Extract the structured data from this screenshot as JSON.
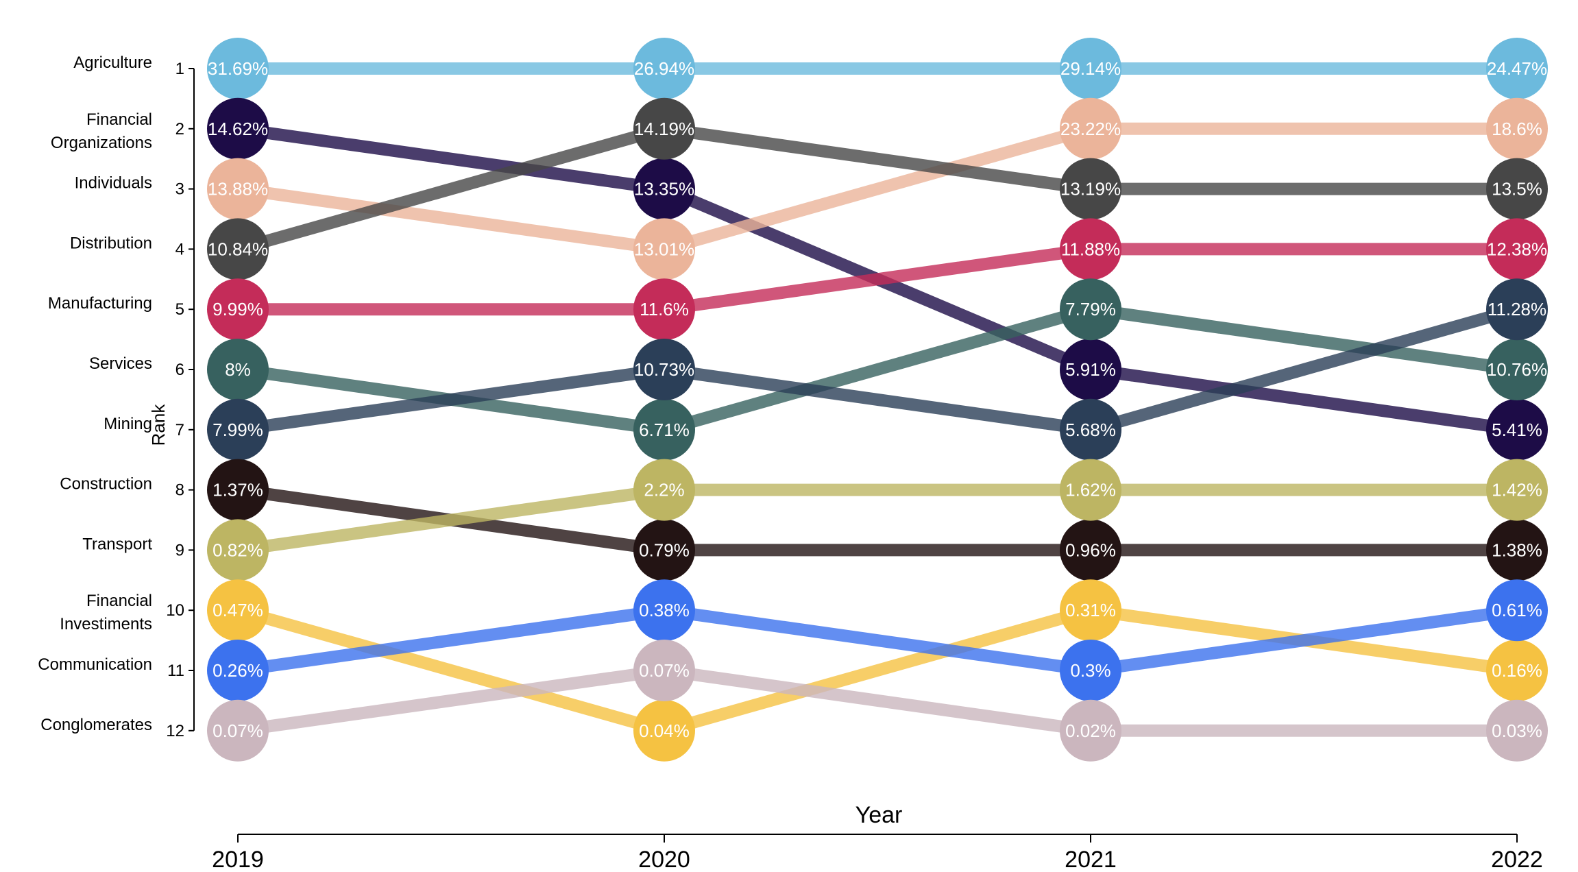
{
  "chart_data": {
    "type": "line",
    "subtype": "bump",
    "xlabel": "Year",
    "ylabel": "Rank",
    "x": [
      "2019",
      "2020",
      "2021",
      "2022"
    ],
    "ranks": [
      1,
      2,
      3,
      4,
      5,
      6,
      7,
      8,
      9,
      10,
      11,
      12
    ],
    "ylim": [
      1,
      12
    ],
    "y_inverted": true,
    "grid": false,
    "series": [
      {
        "name": "Agriculture",
        "color": "#6cbadd",
        "rank": [
          1,
          1,
          1,
          1
        ],
        "labels": [
          "31.69%",
          "26.94%",
          "29.14%",
          "24.47%"
        ]
      },
      {
        "name": "Financial Organizations",
        "label_lines": [
          "Financial",
          "Organizations"
        ],
        "color": "#1d0c47",
        "rank": [
          2,
          3,
          6,
          7
        ],
        "labels": [
          "14.62%",
          "13.35%",
          "5.91%",
          "5.41%"
        ]
      },
      {
        "name": "Individuals",
        "color": "#ebb49a",
        "rank": [
          3,
          4,
          2,
          2
        ],
        "labels": [
          "13.88%",
          "13.01%",
          "23.22%",
          "18.6%"
        ]
      },
      {
        "name": "Distribution",
        "color": "#474747",
        "rank": [
          4,
          2,
          3,
          3
        ],
        "labels": [
          "10.84%",
          "14.19%",
          "13.19%",
          "13.5%"
        ]
      },
      {
        "name": "Manufacturing",
        "color": "#c42c59",
        "rank": [
          5,
          5,
          4,
          4
        ],
        "labels": [
          "9.99%",
          "11.6%",
          "11.88%",
          "12.38%"
        ]
      },
      {
        "name": "Services",
        "color": "#37615f",
        "rank": [
          6,
          7,
          5,
          6
        ],
        "labels": [
          "8%",
          "6.71%",
          "7.79%",
          "10.76%"
        ]
      },
      {
        "name": "Mining",
        "color": "#2b3f58",
        "rank": [
          7,
          6,
          7,
          5
        ],
        "labels": [
          "7.99%",
          "10.73%",
          "5.68%",
          "11.28%"
        ]
      },
      {
        "name": "Construction",
        "color": "#231414",
        "rank": [
          8,
          9,
          9,
          9
        ],
        "labels": [
          "1.37%",
          "0.79%",
          "0.96%",
          "1.38%"
        ]
      },
      {
        "name": "Transport",
        "color": "#bdb563",
        "rank": [
          9,
          8,
          8,
          8
        ],
        "labels": [
          "0.82%",
          "2.2%",
          "1.62%",
          "1.42%"
        ]
      },
      {
        "name": "Financial Investiments",
        "label_lines": [
          "Financial",
          "Investiments"
        ],
        "color": "#f5c242",
        "rank": [
          10,
          12,
          10,
          11
        ],
        "labels": [
          "0.47%",
          "0.04%",
          "0.31%",
          "0.16%"
        ]
      },
      {
        "name": "Communication",
        "color": "#3c72ee",
        "rank": [
          11,
          10,
          11,
          10
        ],
        "labels": [
          "0.26%",
          "0.38%",
          "0.3%",
          "0.61%"
        ]
      },
      {
        "name": "Conglomerates",
        "color": "#cbb6be",
        "rank": [
          12,
          11,
          12,
          12
        ],
        "labels": [
          "0.07%",
          "0.07%",
          "0.02%",
          "0.03%"
        ]
      }
    ]
  }
}
